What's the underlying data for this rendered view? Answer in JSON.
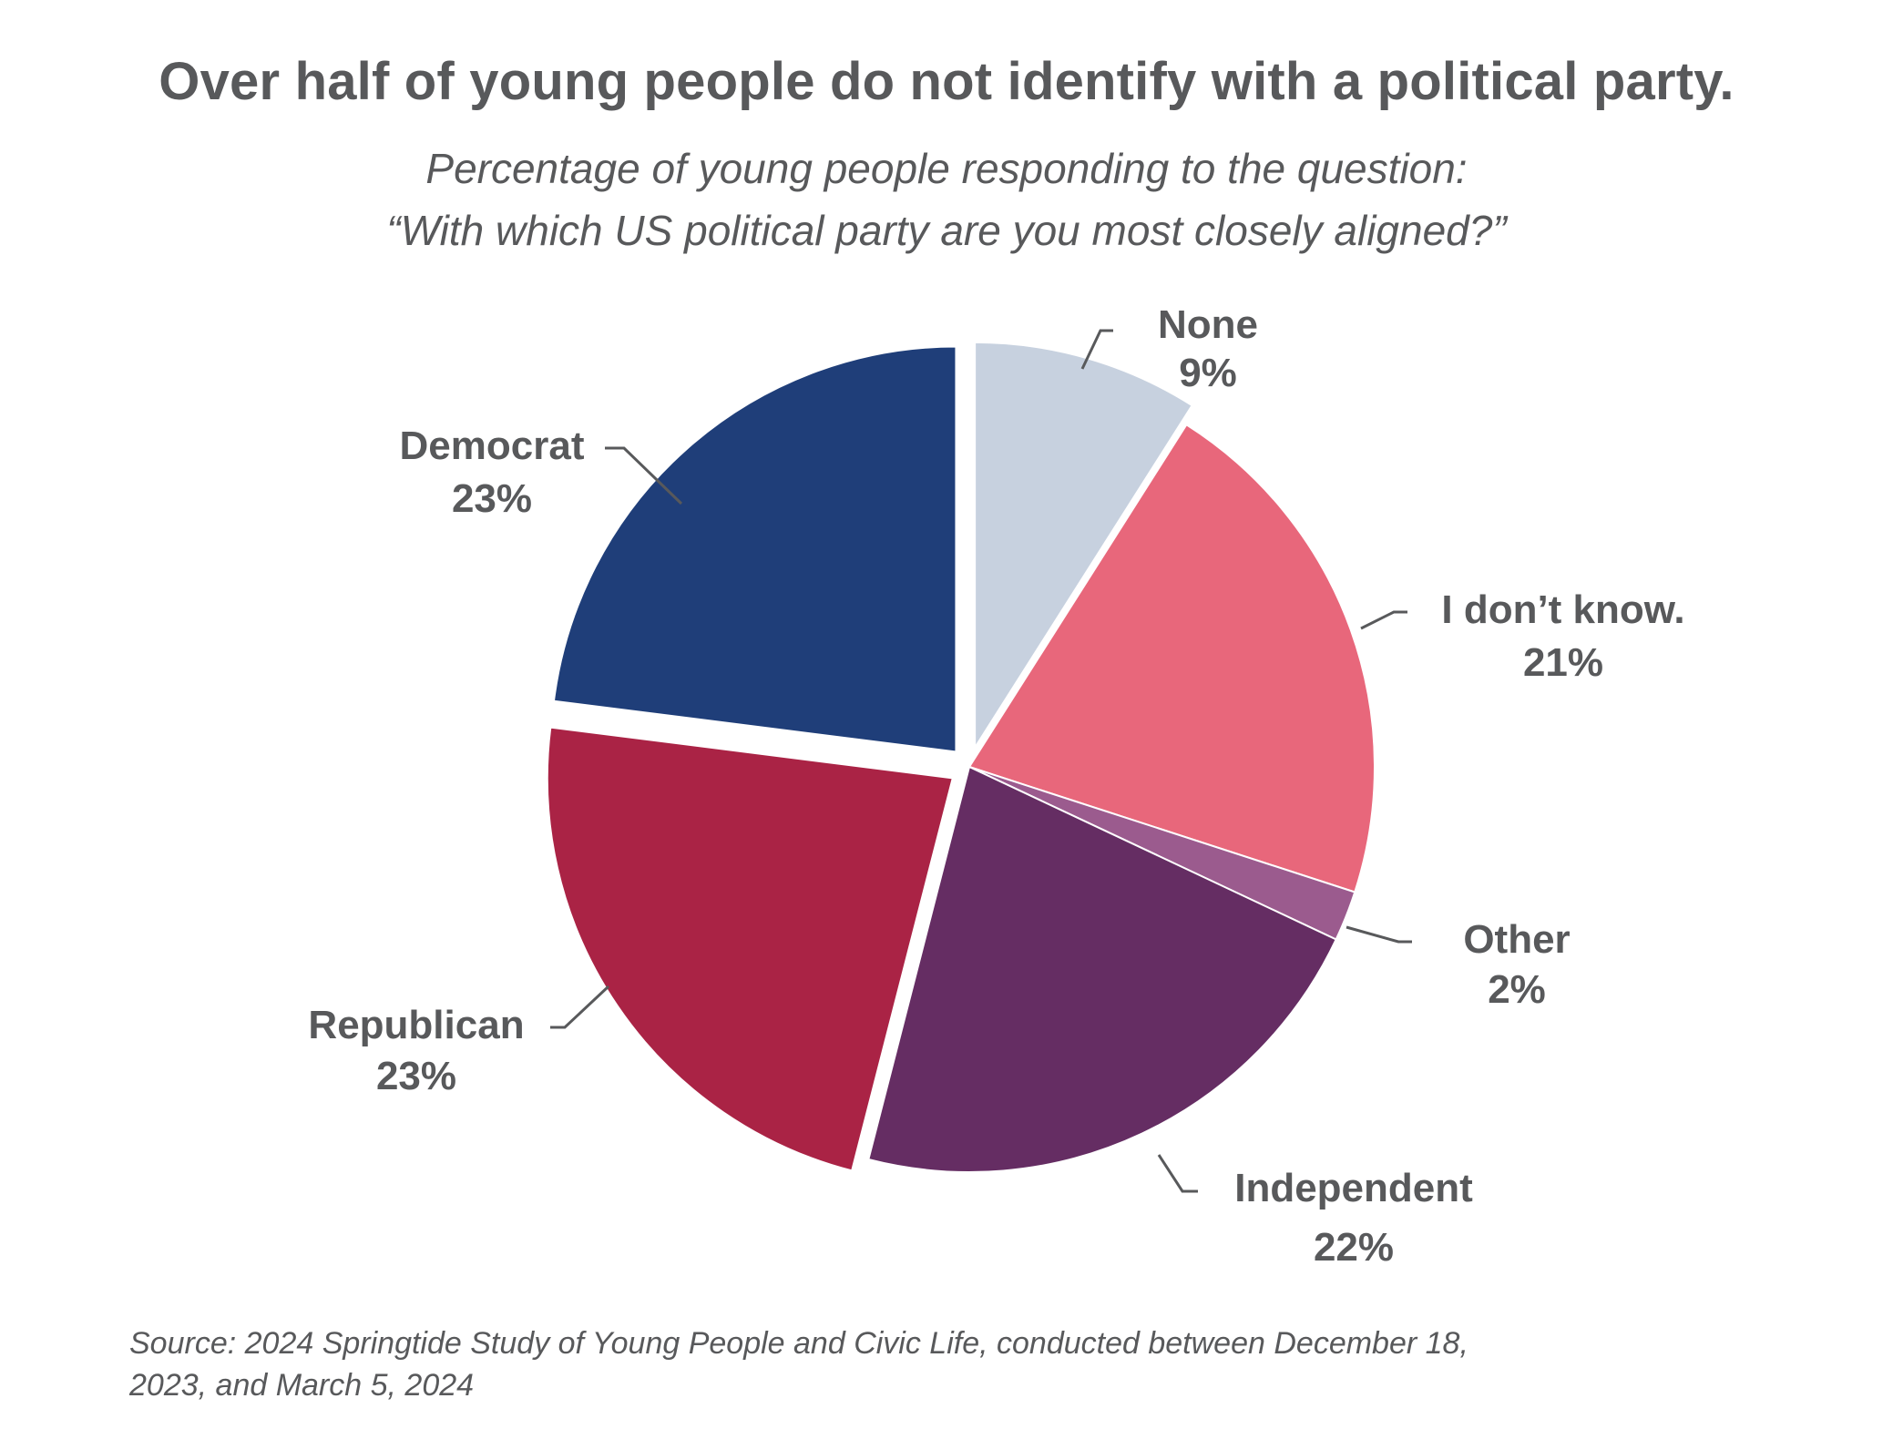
{
  "title": "Over half of young people do not identify with a political party.",
  "subtitle_line1": "Percentage of young people responding to the question:",
  "subtitle_line2": "“With which US political party are you most closely aligned?”",
  "source_line1": "Source: 2024 Springtide Study of Young People and Civic Life, conducted between December 18,",
  "source_line2": "2023, and March 5, 2024",
  "chart_data": {
    "type": "pie",
    "title": "Over half of young people do not identify with a political party.",
    "subtitle": "Percentage of young people responding to the question: “With which US political party are you most closely aligned?”",
    "units": "%",
    "slices": [
      {
        "label": "None",
        "value": 9,
        "value_label": "9%",
        "color": "#c7d1df",
        "exploded": true
      },
      {
        "label": "I don’t know.",
        "value": 21,
        "value_label": "21%",
        "color": "#e8677b",
        "exploded": false
      },
      {
        "label": "Other",
        "value": 2,
        "value_label": "2%",
        "color": "#9b5b8e",
        "exploded": false
      },
      {
        "label": "Independent",
        "value": 22,
        "value_label": "22%",
        "color": "#652d63",
        "exploded": false
      },
      {
        "label": "Republican",
        "value": 23,
        "value_label": "23%",
        "color": "#aa2345",
        "exploded": true
      },
      {
        "label": "Democrat",
        "value": 23,
        "value_label": "23%",
        "color": "#1f3e79",
        "exploded": true
      }
    ],
    "start_angle_deg": 0,
    "direction": "clockwise"
  }
}
